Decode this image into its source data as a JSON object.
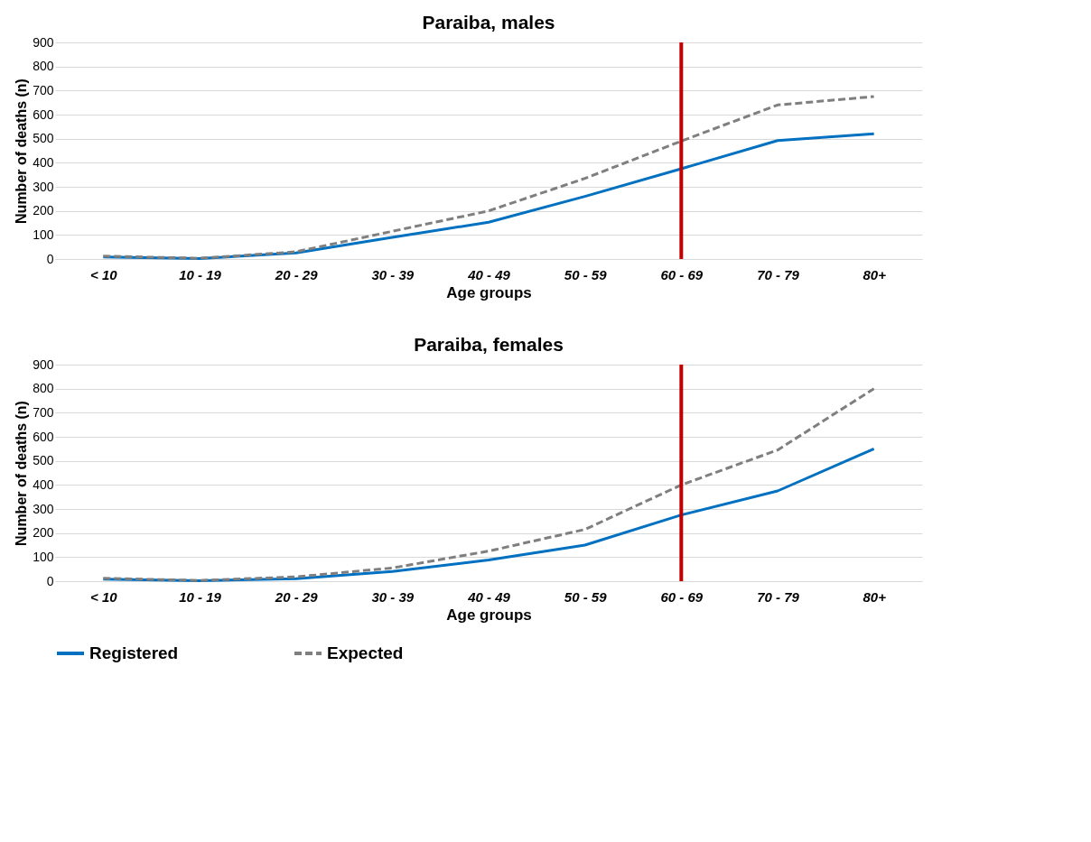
{
  "chart_data": [
    {
      "type": "line",
      "title": "Paraiba, males",
      "xlabel": "Age groups",
      "ylabel": "Number of deaths (n)",
      "categories": [
        "< 10",
        "10 - 19",
        "20 - 29",
        "30 - 39",
        "40 - 49",
        "50 - 59",
        "60 - 69",
        "70 - 79",
        "80+"
      ],
      "series": [
        {
          "name": "Registered",
          "color": "#0070c0",
          "line_style": "solid",
          "values": [
            8,
            2,
            25,
            90,
            153,
            260,
            375,
            492,
            520
          ]
        },
        {
          "name": "Expected",
          "color": "#7f7f7f",
          "line_style": "dashed",
          "values": [
            12,
            3,
            30,
            115,
            200,
            335,
            490,
            640,
            675
          ]
        }
      ],
      "ylim": [
        0,
        900
      ],
      "yticks": [
        0,
        100,
        200,
        300,
        400,
        500,
        600,
        700,
        800,
        900
      ],
      "grid": "y",
      "legend": "bottom",
      "ref_lines": [
        {
          "axis": "x",
          "value": "60 - 69",
          "color": "#c00000"
        }
      ]
    },
    {
      "type": "line",
      "title": "Paraiba, females",
      "xlabel": "Age groups",
      "ylabel": "Number of deaths (n)",
      "categories": [
        "< 10",
        "10 - 19",
        "20 - 29",
        "30 - 39",
        "40 - 49",
        "50 - 59",
        "60 - 69",
        "70 - 79",
        "80+"
      ],
      "series": [
        {
          "name": "Registered",
          "color": "#0070c0",
          "line_style": "solid",
          "values": [
            8,
            2,
            10,
            40,
            88,
            150,
            275,
            375,
            550
          ]
        },
        {
          "name": "Expected",
          "color": "#7f7f7f",
          "line_style": "dashed",
          "values": [
            12,
            3,
            18,
            55,
            125,
            215,
            400,
            545,
            800
          ]
        }
      ],
      "ylim": [
        0,
        900
      ],
      "yticks": [
        0,
        100,
        200,
        300,
        400,
        500,
        600,
        700,
        800,
        900
      ],
      "grid": "y",
      "legend": "bottom",
      "ref_lines": [
        {
          "axis": "x",
          "value": "60 - 69",
          "color": "#c00000"
        }
      ]
    }
  ]
}
